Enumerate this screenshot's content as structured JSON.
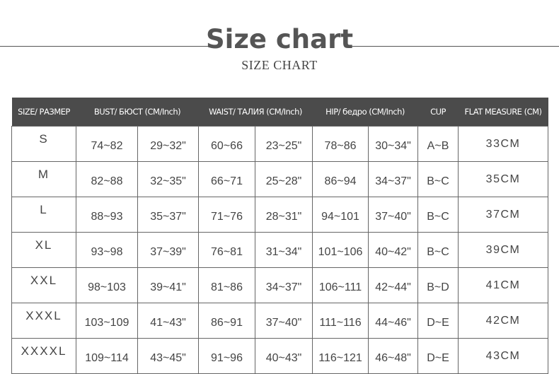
{
  "title": "Size chart",
  "subtitle": "SIZE CHART",
  "headers": [
    "SIZE/ РАЗМЕР",
    "BUST/ БЮСТ (CM/Inch)",
    "WAIST/ ТАЛИЯ (CM/Inch)",
    "HIP/ бедро (CM/Inch)",
    "CUP",
    "FLAT MEASURE (CM)"
  ],
  "rows": [
    [
      "S",
      "74~82",
      "29~32\"",
      "60~66",
      "23~25\"",
      "78~86",
      "30~34\"",
      "A~B",
      "33CM"
    ],
    [
      "M",
      "82~88",
      "32~35\"",
      "66~71",
      "25~28\"",
      "86~94",
      "34~37\"",
      "B~C",
      "35CM"
    ],
    [
      "L",
      "88~93",
      "35~37\"",
      "71~76",
      "28~31\"",
      "94~101",
      "37~40\"",
      "B~C",
      "37CM"
    ],
    [
      "XL",
      "93~98",
      "37~39\"",
      "76~81",
      "31~34\"",
      "101~106",
      "40~42\"",
      "B~C",
      "39CM"
    ],
    [
      "XXL",
      "98~103",
      "39~41\"",
      "81~86",
      "34~37\"",
      "106~111",
      "42~44\"",
      "B~D",
      "41CM"
    ],
    [
      "XXXL",
      "103~109",
      "41~43\"",
      "86~91",
      "37~40\"",
      "111~116",
      "44~46\"",
      "D~E",
      "42CM"
    ],
    [
      "XXXXL",
      "109~114",
      "43~45\"",
      "91~96",
      "40~43\"",
      "116~121",
      "46~48\"",
      "D~E",
      "43CM"
    ]
  ]
}
